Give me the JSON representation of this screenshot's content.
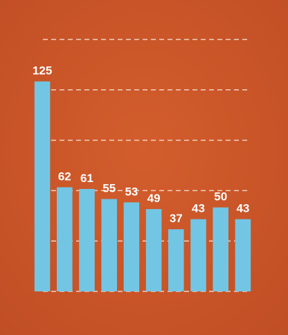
{
  "chart_data": {
    "type": "bar",
    "categories": [
      null,
      null,
      null,
      null,
      null,
      null,
      null,
      null,
      null,
      null
    ],
    "values": [
      125,
      62,
      61,
      55,
      53,
      49,
      37,
      43,
      50,
      43
    ],
    "color": "#72c6e4",
    "ylim": [
      0,
      150
    ],
    "yticks": [
      0,
      30,
      60,
      90,
      120,
      150
    ],
    "grid": true
  }
}
